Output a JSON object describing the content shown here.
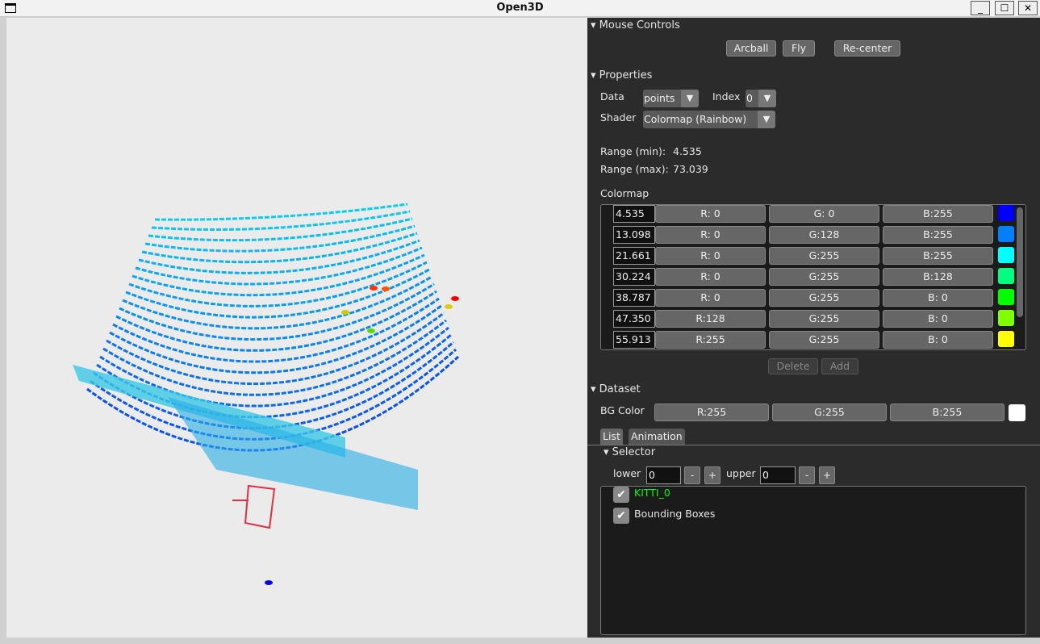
{
  "window": {
    "title": "Open3D",
    "minimize": "_",
    "maximize": "☐",
    "close": "✕"
  },
  "mouse_controls": {
    "header": "Mouse Controls",
    "buttons": [
      "Arcball",
      "Fly",
      "Re-center"
    ]
  },
  "properties": {
    "header": "Properties",
    "data_label": "Data",
    "data_value": "points",
    "index_label": "Index",
    "index_value": "0",
    "shader_label": "Shader",
    "shader_value": "Colormap (Rainbow)",
    "range_min_label": "Range (min):",
    "range_min": "4.535",
    "range_max_label": "Range (max):",
    "range_max": "73.039",
    "colormap_label": "Colormap",
    "colormap": [
      {
        "value": "4.535",
        "r": "R:  0",
        "g": "G:  0",
        "b": "B:255",
        "color": "#0000ff"
      },
      {
        "value": "13.098",
        "r": "R:  0",
        "g": "G:128",
        "b": "B:255",
        "color": "#0080ff"
      },
      {
        "value": "21.661",
        "r": "R:  0",
        "g": "G:255",
        "b": "B:255",
        "color": "#00ffff"
      },
      {
        "value": "30.224",
        "r": "R:  0",
        "g": "G:255",
        "b": "B:128",
        "color": "#00ff80"
      },
      {
        "value": "38.787",
        "r": "R:  0",
        "g": "G:255",
        "b": "B:  0",
        "color": "#00ff00"
      },
      {
        "value": "47.350",
        "r": "R:128",
        "g": "G:255",
        "b": "B:  0",
        "color": "#80ff00"
      },
      {
        "value": "55.913",
        "r": "R:255",
        "g": "G:255",
        "b": "B:  0",
        "color": "#ffff00"
      }
    ],
    "delete_label": "Delete",
    "add_label": "Add"
  },
  "dataset": {
    "header": "Dataset",
    "bg_label": "BG Color",
    "bg_r": "R:255",
    "bg_g": "G:255",
    "bg_b": "B:255",
    "bg_color": "#ffffff",
    "tabs": [
      "List",
      "Animation"
    ],
    "selector": {
      "header": "Selector",
      "lower_label": "lower",
      "lower": "0",
      "upper_label": "upper",
      "upper": "0",
      "minus": "-",
      "plus": "+"
    },
    "items": [
      {
        "label": "KITTI_0",
        "color": "#00ff00",
        "checked": true
      },
      {
        "label": "Bounding Boxes",
        "color": "#e6e6e6",
        "checked": true
      }
    ]
  }
}
